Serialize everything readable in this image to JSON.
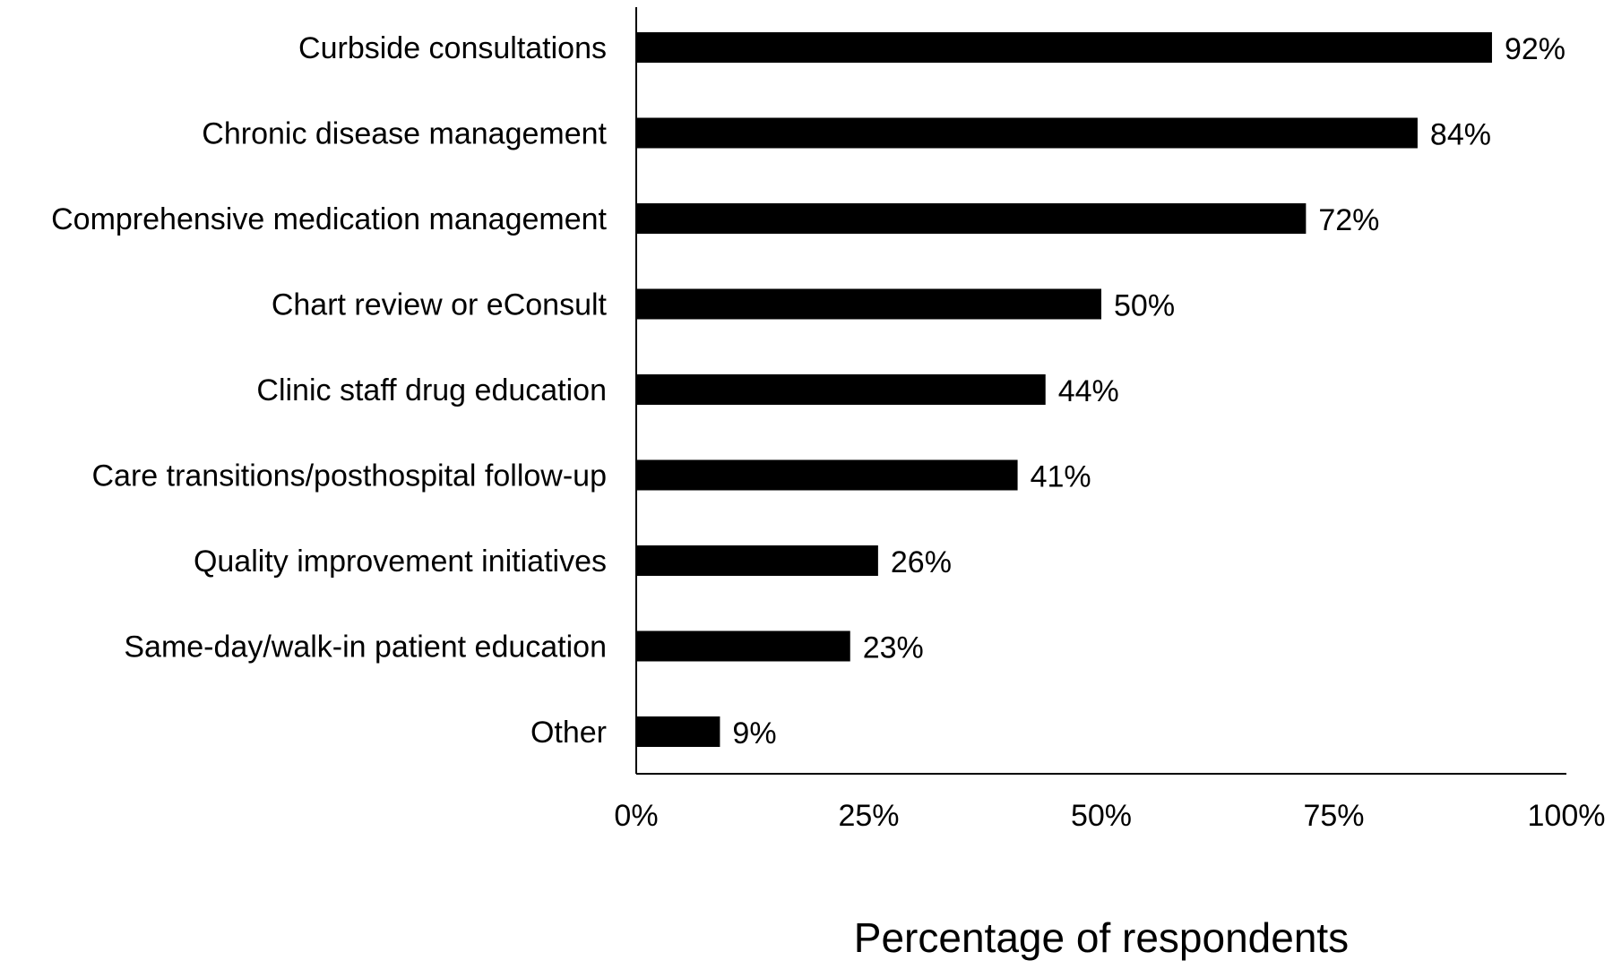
{
  "chart_data": {
    "type": "bar",
    "orientation": "horizontal",
    "categories": [
      "Curbside consultations",
      "Chronic disease management",
      "Comprehensive medication management",
      "Chart review or eConsult",
      "Clinic staff drug education",
      "Care transitions/posthospital follow-up",
      "Quality improvement initiatives",
      "Same-day/walk-in patient education",
      "Other"
    ],
    "values": [
      92,
      84,
      72,
      50,
      44,
      41,
      26,
      23,
      9
    ],
    "value_labels": [
      "92%",
      "84%",
      "72%",
      "50%",
      "44%",
      "41%",
      "26%",
      "23%",
      "9%"
    ],
    "title": "",
    "xlabel": "Percentage of respondents",
    "ylabel": "",
    "xlim": [
      0,
      100
    ],
    "xticks": [
      0,
      25,
      50,
      75,
      100
    ],
    "xtick_labels": [
      "0%",
      "25%",
      "50%",
      "75%",
      "100%"
    ],
    "grid": false,
    "bar_color": "#000000"
  }
}
